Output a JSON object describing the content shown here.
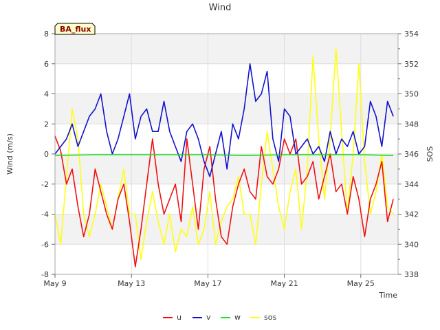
{
  "chart_data": {
    "type": "line",
    "title": "Wind",
    "badge": "BA_flux",
    "xlabel": "Time",
    "ylabel_left": "Wind (m/s)",
    "ylabel_right": "SOS",
    "x_range_days": [
      9.0,
      26.95
    ],
    "x_ticks": [
      {
        "day": 9,
        "label": "May 9"
      },
      {
        "day": 13,
        "label": "May 13"
      },
      {
        "day": 17,
        "label": "May 17"
      },
      {
        "day": 21,
        "label": "May 21"
      },
      {
        "day": 25,
        "label": "May 25"
      }
    ],
    "ylim_left": [
      -8,
      8
    ],
    "yticks_left": [
      -8,
      -6,
      -4,
      -2,
      0,
      2,
      4,
      6,
      8
    ],
    "ylim_right": [
      338,
      354
    ],
    "yticks_right": [
      338,
      340,
      342,
      344,
      346,
      348,
      350,
      352,
      354
    ],
    "colors": {
      "u": "#ee1111",
      "v": "#1111cc",
      "w": "#22dd22",
      "sos": "#ffff11",
      "band": "#f2f2f2",
      "grid": "#dddddd"
    },
    "series": [
      {
        "name": "u",
        "axis": "left",
        "x": [
          9.0,
          9.3,
          9.6,
          9.9,
          10.2,
          10.5,
          10.8,
          11.1,
          11.4,
          11.7,
          12.0,
          12.3,
          12.6,
          12.9,
          13.2,
          13.5,
          13.8,
          14.1,
          14.4,
          14.7,
          15.0,
          15.3,
          15.6,
          15.9,
          16.2,
          16.5,
          16.8,
          17.1,
          17.4,
          17.7,
          18.0,
          18.3,
          18.6,
          18.9,
          19.2,
          19.5,
          19.8,
          20.1,
          20.4,
          20.7,
          21.0,
          21.3,
          21.6,
          21.9,
          22.2,
          22.5,
          22.8,
          23.1,
          23.4,
          23.7,
          24.0,
          24.3,
          24.6,
          24.9,
          25.2,
          25.5,
          25.8,
          26.1,
          26.4,
          26.7
        ],
        "values": [
          1.2,
          0.2,
          -2.0,
          -1.0,
          -3.5,
          -5.5,
          -4.0,
          -1.0,
          -2.5,
          -4.0,
          -5.0,
          -3.0,
          -2.0,
          -4.5,
          -7.5,
          -5.0,
          -2.0,
          1.0,
          -2.0,
          -4.0,
          -3.0,
          -2.0,
          -4.5,
          1.0,
          -2.0,
          -5.0,
          -1.0,
          0.5,
          -3.0,
          -5.5,
          -6.0,
          -3.5,
          -2.0,
          -1.0,
          -2.5,
          -3.0,
          0.5,
          -1.5,
          -2.0,
          -1.0,
          1.0,
          0.0,
          1.0,
          -2.0,
          -1.5,
          -0.5,
          -3.0,
          -1.5,
          0.0,
          -2.5,
          -2.0,
          -4.0,
          -1.5,
          -3.0,
          -5.5,
          -3.0,
          -2.0,
          -0.5,
          -4.5,
          -3.0
        ]
      },
      {
        "name": "v",
        "axis": "left",
        "x": [
          9.0,
          9.3,
          9.6,
          9.9,
          10.2,
          10.5,
          10.8,
          11.1,
          11.4,
          11.7,
          12.0,
          12.3,
          12.6,
          12.9,
          13.2,
          13.5,
          13.8,
          14.1,
          14.4,
          14.7,
          15.0,
          15.3,
          15.6,
          15.9,
          16.2,
          16.5,
          16.8,
          17.1,
          17.4,
          17.7,
          18.0,
          18.3,
          18.6,
          18.9,
          19.2,
          19.5,
          19.8,
          20.1,
          20.4,
          20.7,
          21.0,
          21.3,
          21.6,
          21.9,
          22.2,
          22.5,
          22.8,
          23.1,
          23.4,
          23.7,
          24.0,
          24.3,
          24.6,
          24.9,
          25.2,
          25.5,
          25.8,
          26.1,
          26.4,
          26.7
        ],
        "values": [
          0.0,
          0.5,
          1.0,
          2.0,
          0.5,
          1.5,
          2.5,
          3.0,
          4.0,
          1.5,
          0.0,
          1.0,
          2.5,
          4.0,
          1.0,
          2.5,
          3.0,
          1.5,
          1.5,
          3.5,
          1.5,
          0.5,
          -0.5,
          1.5,
          2.0,
          1.0,
          -0.5,
          -1.5,
          0.0,
          1.5,
          -1.0,
          2.0,
          1.0,
          3.0,
          6.0,
          3.5,
          4.0,
          5.5,
          1.0,
          -0.5,
          3.0,
          2.5,
          0.0,
          0.5,
          1.0,
          0.0,
          0.5,
          -0.5,
          1.5,
          0.0,
          1.0,
          0.5,
          1.5,
          0.0,
          0.5,
          3.5,
          2.5,
          0.5,
          3.5,
          2.5
        ]
      },
      {
        "name": "w",
        "axis": "left",
        "x": [
          9.0,
          11.0,
          13.0,
          15.0,
          17.0,
          19.0,
          21.0,
          23.0,
          25.0,
          26.7
        ],
        "values": [
          -0.1,
          -0.05,
          -0.05,
          -0.05,
          -0.05,
          -0.1,
          -0.05,
          -0.05,
          -0.05,
          -0.1
        ]
      },
      {
        "name": "sos",
        "axis": "right",
        "x": [
          9.0,
          9.3,
          9.6,
          9.9,
          10.2,
          10.5,
          10.8,
          11.1,
          11.4,
          11.7,
          12.0,
          12.3,
          12.6,
          12.9,
          13.2,
          13.5,
          13.8,
          14.1,
          14.4,
          14.7,
          15.0,
          15.3,
          15.6,
          15.9,
          16.2,
          16.5,
          16.8,
          17.1,
          17.4,
          17.7,
          18.0,
          18.3,
          18.6,
          18.9,
          19.2,
          19.5,
          19.8,
          20.1,
          20.4,
          20.7,
          21.0,
          21.3,
          21.6,
          21.9,
          22.2,
          22.5,
          22.8,
          23.1,
          23.4,
          23.7,
          24.0,
          24.3,
          24.6,
          24.9,
          25.2,
          25.5,
          25.8,
          26.1,
          26.4,
          26.7
        ],
        "values": [
          342.0,
          340.0,
          344.5,
          349.0,
          347.0,
          342.0,
          340.5,
          342.0,
          344.0,
          342.5,
          341.0,
          343.0,
          345.0,
          342.0,
          342.0,
          339.0,
          341.5,
          343.5,
          341.5,
          340.0,
          342.0,
          339.5,
          341.0,
          340.5,
          342.5,
          340.0,
          341.0,
          343.5,
          340.0,
          341.5,
          342.5,
          343.0,
          344.5,
          342.0,
          342.0,
          340.0,
          344.0,
          347.5,
          345.0,
          342.5,
          341.0,
          343.5,
          345.0,
          341.0,
          345.0,
          352.5,
          347.0,
          343.0,
          347.0,
          353.0,
          347.5,
          342.0,
          346.0,
          352.0,
          345.5,
          342.0,
          343.5,
          346.0,
          342.5,
          342.0
        ]
      }
    ],
    "legend": [
      {
        "name": "u",
        "label": "u"
      },
      {
        "name": "v",
        "label": "v"
      },
      {
        "name": "w",
        "label": "w"
      },
      {
        "name": "sos",
        "label": "sos"
      }
    ]
  }
}
